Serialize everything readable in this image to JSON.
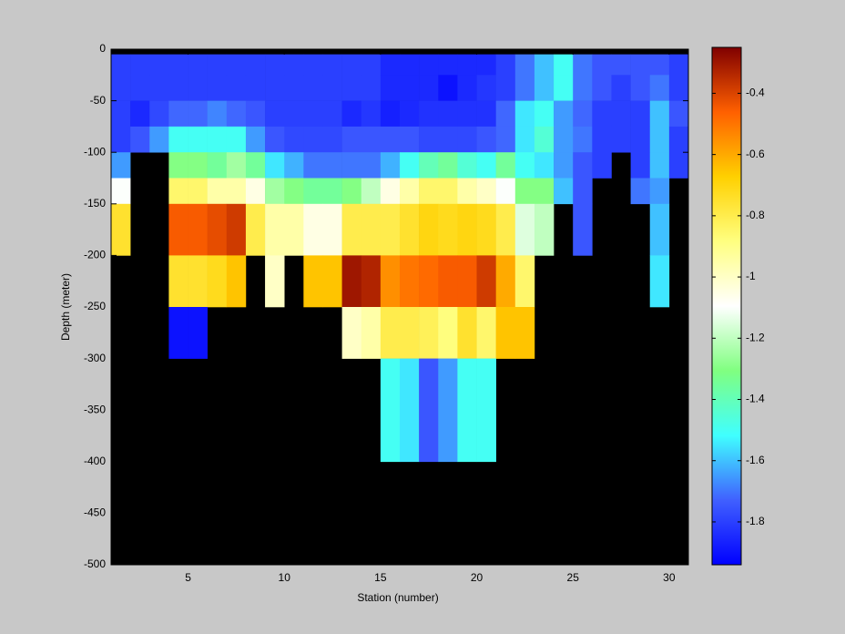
{
  "chart_data": {
    "type": "heatmap",
    "xlabel": "Station (number)",
    "ylabel": "Depth (meter)",
    "xlim": [
      1,
      31
    ],
    "ylim": [
      -500,
      0
    ],
    "xticks": [
      5,
      10,
      15,
      20,
      25,
      30
    ],
    "yticks": [
      0,
      -50,
      -100,
      -150,
      -200,
      -250,
      -300,
      -350,
      -400,
      -450,
      -500
    ],
    "x_edges": [
      1,
      2,
      3,
      4,
      5,
      6,
      7,
      8,
      9,
      10,
      11,
      12,
      13,
      14,
      15,
      16,
      17,
      18,
      19,
      20,
      21,
      22,
      23,
      24,
      25,
      26,
      27,
      28,
      29,
      30,
      31
    ],
    "y_edges": [
      0,
      -5,
      -25,
      -50,
      -75,
      -100,
      -125,
      -150,
      -200,
      -250,
      -300,
      -400,
      -500
    ],
    "clim": [
      -1.94,
      -0.25
    ],
    "cticks": [
      -0.4,
      -0.6,
      -0.8,
      -1,
      -1.2,
      -1.4,
      -1.6,
      -1.8
    ],
    "colormap": [
      "#0000ff",
      "#4060ff",
      "#40ffff",
      "#80ff80",
      "#ffffff",
      "#ffff80",
      "#ffd000",
      "#ff6000",
      "#800000"
    ],
    "missing_color": "#000000",
    "values": [
      [
        null,
        null,
        null,
        null,
        null,
        null,
        null,
        null,
        null,
        null,
        null,
        null,
        null,
        null,
        null,
        null,
        null,
        null,
        null,
        null,
        null,
        null,
        null,
        null,
        null,
        null,
        null,
        null,
        null,
        null
      ],
      [
        -1.8,
        -1.8,
        -1.8,
        -1.8,
        -1.8,
        -1.8,
        -1.8,
        -1.8,
        -1.8,
        -1.8,
        -1.8,
        -1.8,
        -1.8,
        -1.8,
        -1.85,
        -1.85,
        -1.85,
        -1.85,
        -1.85,
        -1.85,
        -1.8,
        -1.7,
        -1.6,
        -1.5,
        -1.7,
        -1.75,
        -1.75,
        -1.75,
        -1.75,
        -1.8
      ],
      [
        -1.8,
        -1.8,
        -1.8,
        -1.8,
        -1.8,
        -1.8,
        -1.8,
        -1.8,
        -1.8,
        -1.8,
        -1.8,
        -1.8,
        -1.8,
        -1.8,
        -1.85,
        -1.85,
        -1.85,
        -1.9,
        -1.85,
        -1.82,
        -1.8,
        -1.7,
        -1.6,
        -1.5,
        -1.7,
        -1.75,
        -1.8,
        -1.75,
        -1.7,
        -1.8
      ],
      [
        -1.8,
        -1.85,
        -1.78,
        -1.72,
        -1.72,
        -1.68,
        -1.72,
        -1.75,
        -1.8,
        -1.8,
        -1.8,
        -1.8,
        -1.85,
        -1.82,
        -1.87,
        -1.85,
        -1.83,
        -1.83,
        -1.83,
        -1.83,
        -1.72,
        -1.55,
        -1.5,
        -1.65,
        -1.72,
        -1.8,
        -1.8,
        -1.8,
        -1.6,
        -1.75
      ],
      [
        -1.8,
        -1.75,
        -1.65,
        -1.5,
        -1.5,
        -1.5,
        -1.5,
        -1.65,
        -1.75,
        -1.78,
        -1.78,
        -1.78,
        -1.75,
        -1.75,
        -1.75,
        -1.75,
        -1.78,
        -1.78,
        -1.78,
        -1.75,
        -1.72,
        -1.55,
        -1.45,
        -1.65,
        -1.7,
        -1.8,
        -1.8,
        -1.8,
        -1.6,
        -1.8
      ],
      [
        -1.65,
        null,
        null,
        -1.3,
        -1.3,
        -1.35,
        -1.25,
        -1.35,
        -1.55,
        -1.62,
        -1.7,
        -1.7,
        -1.7,
        -1.7,
        -1.62,
        -1.5,
        -1.4,
        -1.35,
        -1.45,
        -1.5,
        -1.35,
        -1.5,
        -1.55,
        -1.65,
        -1.75,
        -1.8,
        null,
        -1.8,
        -1.6,
        -1.8
      ],
      [
        -1.1,
        null,
        null,
        -0.85,
        -0.85,
        -0.95,
        -0.95,
        -1.05,
        -1.25,
        -1.3,
        -1.35,
        -1.35,
        -1.3,
        -1.2,
        -1.05,
        -0.95,
        -0.85,
        -0.85,
        -0.95,
        -1.0,
        -1.1,
        -1.3,
        -1.3,
        -1.6,
        -1.75,
        null,
        null,
        -1.7,
        -1.65,
        null
      ],
      [
        -0.75,
        null,
        null,
        -0.45,
        -0.45,
        -0.42,
        -0.38,
        -0.8,
        -0.95,
        -0.95,
        -1.05,
        -1.05,
        -0.8,
        -0.8,
        -0.8,
        -0.75,
        -0.7,
        -0.72,
        -0.7,
        -0.72,
        -0.8,
        -1.15,
        -1.2,
        null,
        -1.75,
        null,
        null,
        null,
        -1.6,
        null
      ],
      [
        null,
        null,
        null,
        -0.75,
        -0.75,
        -0.72,
        -0.65,
        null,
        -1.0,
        null,
        -0.65,
        -0.65,
        -0.3,
        -0.33,
        -0.55,
        -0.5,
        -0.48,
        -0.45,
        -0.45,
        -0.38,
        -0.6,
        -0.85,
        null,
        null,
        null,
        null,
        null,
        null,
        -1.55,
        null
      ],
      [
        null,
        null,
        null,
        -1.9,
        -1.9,
        null,
        null,
        null,
        null,
        null,
        null,
        null,
        -1.0,
        -0.95,
        -0.8,
        -0.8,
        -0.82,
        -0.88,
        -0.75,
        -0.85,
        -0.65,
        -0.65,
        null,
        null,
        null,
        null,
        null,
        null,
        null,
        null
      ],
      [
        null,
        null,
        null,
        null,
        null,
        null,
        null,
        null,
        null,
        null,
        null,
        null,
        null,
        null,
        -1.5,
        -1.55,
        -1.75,
        -1.65,
        -1.5,
        -1.5,
        null,
        null,
        null,
        null,
        null,
        null,
        null,
        null,
        null,
        null
      ],
      [
        null,
        null,
        null,
        null,
        null,
        null,
        null,
        null,
        null,
        null,
        null,
        null,
        null,
        null,
        null,
        null,
        null,
        null,
        null,
        null,
        null,
        null,
        null,
        null,
        null,
        null,
        null,
        null,
        null,
        null
      ]
    ]
  }
}
